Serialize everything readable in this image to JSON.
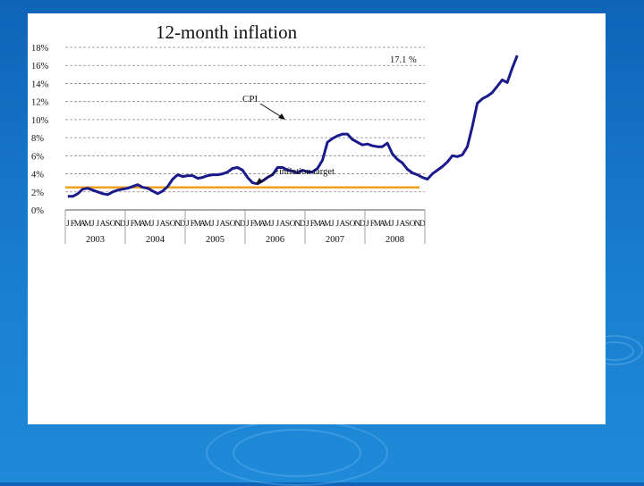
{
  "chart_data": {
    "type": "line",
    "title": "12-month inflation",
    "ylim": [
      0,
      18
    ],
    "yticks": [
      "0%",
      "2%",
      "4%",
      "6%",
      "8%",
      "10%",
      "12%",
      "14%",
      "16%",
      "18%"
    ],
    "grid": true,
    "month_labels": [
      "J",
      "F",
      "M",
      "A",
      "M",
      "J",
      "J",
      "A",
      "S",
      "O",
      "N",
      "D"
    ],
    "years": [
      "2003",
      "2004",
      "2005",
      "2006",
      "2007",
      "2008"
    ],
    "series": [
      {
        "name": "CPI",
        "color": "#1a1a8c",
        "values": [
          1.5,
          1.5,
          1.8,
          2.3,
          2.4,
          2.2,
          2.0,
          1.8,
          1.7,
          2.0,
          2.2,
          2.3,
          2.4,
          2.6,
          2.8,
          2.5,
          2.4,
          2.1,
          1.8,
          2.1,
          2.6,
          3.4,
          3.9,
          3.7,
          3.8,
          3.8,
          3.5,
          3.6,
          3.8,
          3.9,
          3.9,
          4.0,
          4.2,
          4.6,
          4.7,
          4.4,
          3.6,
          3.0,
          2.9,
          3.2,
          3.6,
          3.9,
          4.7,
          4.7,
          4.4,
          4.3,
          4.1,
          4.4,
          4.2,
          4.2,
          4.6,
          5.5,
          7.5,
          7.9,
          8.2,
          8.4,
          8.4,
          7.8,
          7.5,
          7.2,
          7.3,
          7.1,
          7.0,
          7.0,
          7.4,
          6.2,
          5.6,
          5.2,
          4.5,
          4.1,
          3.9,
          3.6,
          3.4,
          4.0,
          4.4,
          4.8,
          5.3,
          6.0,
          5.9,
          6.1,
          7.0,
          9.2,
          11.8,
          12.3,
          12.6,
          13.0,
          13.7,
          14.4,
          14.1,
          15.7,
          17.1
        ]
      },
      {
        "name": "inflation target",
        "color": "#f0a020",
        "values": [
          2.5,
          2.5
        ]
      }
    ],
    "annotations": {
      "cpi_label": "CPI",
      "target_label": "inflation target",
      "last_value_label": "17.1 %"
    }
  }
}
